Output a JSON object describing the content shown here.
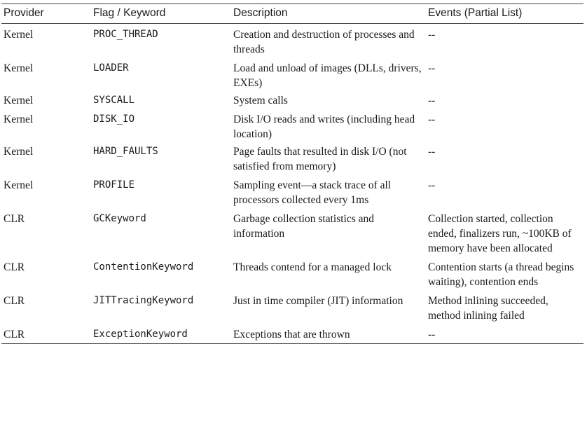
{
  "headers": {
    "provider": "Provider",
    "flag": "Flag / Keyword",
    "description": "Description",
    "events": "Events (Partial List)"
  },
  "rows": [
    {
      "provider": "Kernel",
      "flag": "PROC_THREAD",
      "description": "Creation and destruction of processes and threads",
      "events": "--"
    },
    {
      "provider": "Kernel",
      "flag": "LOADER",
      "description": "Load and unload of images (DLLs, drivers, EXEs)",
      "events": "--"
    },
    {
      "provider": "Kernel",
      "flag": "SYSCALL",
      "description": "System calls",
      "events": "--"
    },
    {
      "provider": "Kernel",
      "flag": "DISK_IO",
      "description": "Disk I/O reads and writes (including head location)",
      "events": "--"
    },
    {
      "provider": "Kernel",
      "flag": "HARD_FAULTS",
      "description": "Page faults that resulted in disk I/O (not satisfied from memory)",
      "events": "--"
    },
    {
      "provider": "Kernel",
      "flag": "PROFILE",
      "description": "Sampling event—a stack trace of all processors collected every 1ms",
      "events": "--"
    },
    {
      "provider": "CLR",
      "flag": "GCKeyword",
      "description": "Garbage collection statistics and information",
      "events": "Collection started, collection ended, finalizers run, ~100KB of memory have been allocated"
    },
    {
      "provider": "CLR",
      "flag": "ContentionKeyword",
      "description": "Threads contend for a managed lock",
      "events": "Contention starts (a thread begins waiting), contention ends"
    },
    {
      "provider": "CLR",
      "flag": "JITTracingKeyword",
      "description": "Just in time compiler (JIT) information",
      "events": "Method inlining succeeded, method inlining failed"
    },
    {
      "provider": "CLR",
      "flag": "ExceptionKeyword",
      "description": "Exceptions that are thrown",
      "events": "--"
    }
  ]
}
